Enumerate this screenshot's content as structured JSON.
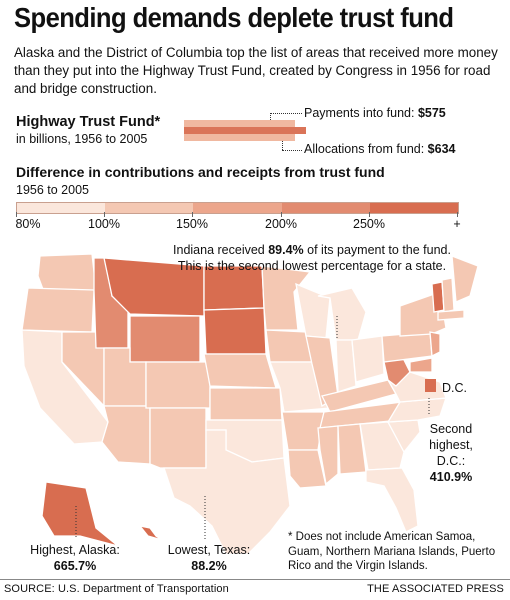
{
  "title": "Spending demands deplete trust fund",
  "intro": "Alaska and the District of Columbia top the list of areas that received more money than they put into the Highway Trust Fund, created by Congress in 1956 for road and bridge construction.",
  "trust_fund": {
    "title": "Highway Trust Fund*",
    "subtitle": "in billions, 1956 to 2005",
    "payments_label": "Payments into fund: ",
    "payments_value": "$575",
    "payments_amount": 575,
    "allocations_label": "Allocations from fund: ",
    "allocations_value": "$634",
    "allocations_amount": 634
  },
  "difference": {
    "title": "Difference in contributions and receipts from trust fund",
    "subtitle": "1956 to 2005"
  },
  "legend": {
    "labels": [
      "80%",
      "100%",
      "150%",
      "200%",
      "250%",
      "+"
    ],
    "colors": [
      "#fbe7dc",
      "#f4c8b3",
      "#eca68c",
      "#e28b70",
      "#d86d50"
    ]
  },
  "callouts": {
    "indiana": {
      "pre": "Indiana received ",
      "value": "89.4%",
      "post": " of its payment to the fund. This is the second lowest percentage for a state."
    },
    "dc_label": "D.C.",
    "dc_text": "Second highest, D.C.:",
    "dc_value": "410.9%",
    "alaska_text": "Highest, Alaska:",
    "alaska_value": "665.7%",
    "texas_text": "Lowest, Texas:",
    "texas_value": "88.2%"
  },
  "footnote": "* Does not include American Samoa, Guam, Northern Mariana Islands, Puerto Rico and the Virgin Islands.",
  "source": "SOURCE: U.S. Department of Transportation",
  "credit": "THE ASSOCIATED PRESS"
}
